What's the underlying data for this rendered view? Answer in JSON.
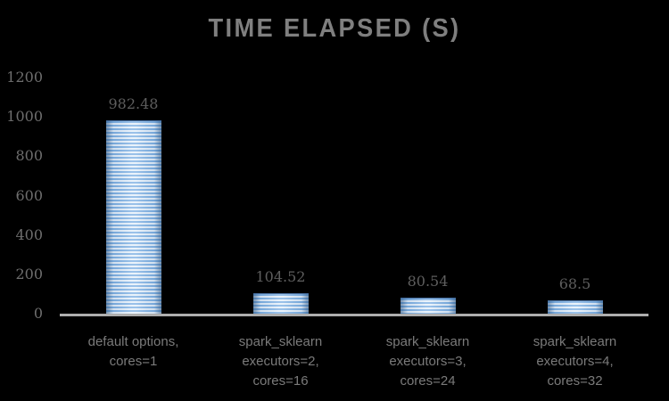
{
  "chart_data": {
    "type": "bar",
    "title": "TIME ELAPSED (S)",
    "xlabel": "",
    "ylabel": "",
    "categories": [
      [
        "default options,",
        "cores=1"
      ],
      [
        "spark_sklearn",
        "executors=2,",
        "cores=16"
      ],
      [
        "spark_sklearn",
        "executors=3,",
        "cores=24"
      ],
      [
        "spark_sklearn",
        "executors=4,",
        "cores=32"
      ]
    ],
    "values": [
      982.48,
      104.52,
      80.54,
      68.5
    ],
    "value_labels": [
      "982.48",
      "104.52",
      "80.54",
      "68.5"
    ],
    "y_ticks": [
      0,
      200,
      400,
      600,
      800,
      1000,
      1200
    ],
    "ylim": [
      0,
      1200
    ],
    "grid": false,
    "legend": null,
    "colors": {
      "background": "#000000",
      "title": "#7F7F7F",
      "axis_labels": "#6E6E6E",
      "value_labels": "#5E5E5E",
      "category_labels": "#7A7A7A",
      "axis_line": "#AEAEAE",
      "bar_stripe_blue": "#7EB0E3",
      "bar_stripe_light": "#E4EFFA"
    }
  }
}
